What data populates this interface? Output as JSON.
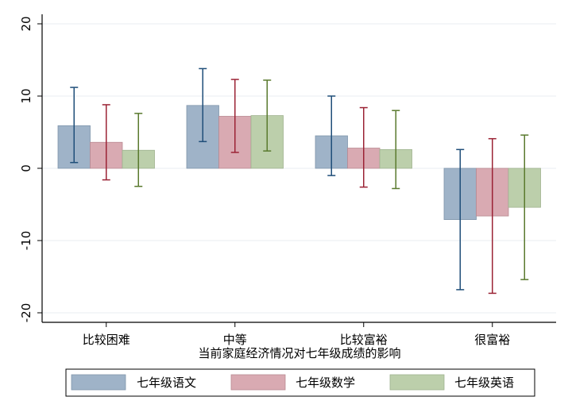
{
  "chart_data": {
    "type": "bar",
    "xlabel": "当前家庭经济情况对七年级成绩的影响",
    "ylabel": "",
    "ylim": [
      -22,
      22
    ],
    "yticks": [
      -20,
      -10,
      0,
      10,
      20
    ],
    "yticks_text": [
      "-20",
      "-10",
      "0",
      "10",
      "20"
    ],
    "grid": true,
    "legend_position": "bottom",
    "categories": [
      "比较困难",
      "中等",
      "比较富裕",
      "很富裕"
    ],
    "series": [
      {
        "name": "七年级语文",
        "color": "#9fb3c8",
        "edge": "#7f95ab",
        "err_color": "#1f4e79",
        "values": [
          5.9,
          8.7,
          4.5,
          -7.1
        ],
        "ci_low": [
          0.8,
          3.7,
          -1.0,
          -16.8
        ],
        "ci_high": [
          11.2,
          13.8,
          10.0,
          2.6
        ]
      },
      {
        "name": "七年级数学",
        "color": "#d9aab2",
        "edge": "#b98a92",
        "err_color": "#9b2335",
        "values": [
          3.6,
          7.2,
          2.8,
          -6.6
        ],
        "ci_low": [
          -1.6,
          2.2,
          -2.6,
          -17.3
        ],
        "ci_high": [
          8.8,
          12.3,
          8.4,
          4.1
        ]
      },
      {
        "name": "七年级英语",
        "color": "#bccfab",
        "edge": "#9fb28f",
        "err_color": "#5a7a2e",
        "values": [
          2.5,
          7.3,
          2.6,
          -5.4
        ],
        "ci_low": [
          -2.5,
          2.4,
          -2.8,
          -15.4
        ],
        "ci_high": [
          7.6,
          12.2,
          8.0,
          4.6
        ]
      }
    ]
  }
}
